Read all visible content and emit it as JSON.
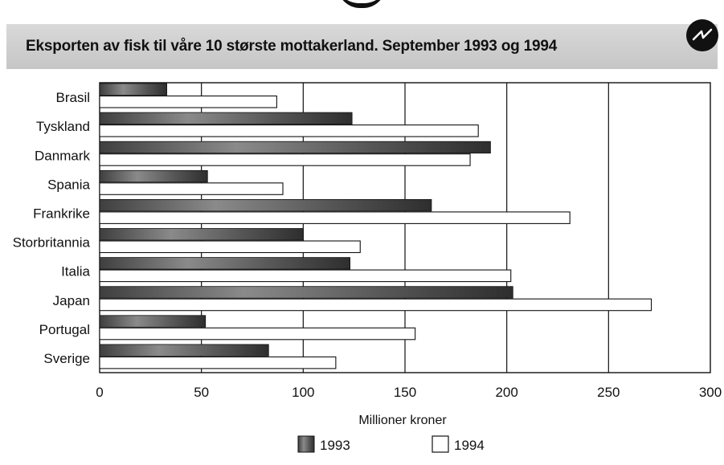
{
  "header": {
    "title": "Eksporten av fisk til våre 10 største mottakerland. September 1993 og 1994"
  },
  "colors": {
    "series_1993": "#6d6d6d",
    "series_1994": "#ffffff",
    "axis": "#111111",
    "title_band": "#d2d2d2"
  },
  "chart_data": {
    "type": "bar",
    "orientation": "horizontal",
    "title": "Eksporten av fisk til våre 10 største mottakerland. September 1993 og 1994",
    "xlabel": "Millioner kroner",
    "ylabel": "",
    "xlim": [
      0,
      300
    ],
    "xticks": [
      0,
      50,
      100,
      150,
      200,
      250,
      300
    ],
    "grid": "vertical",
    "legend_position": "bottom",
    "categories": [
      "Brasil",
      "Tyskland",
      "Danmark",
      "Spania",
      "Frankrike",
      "Storbritannia",
      "Italia",
      "Japan",
      "Portugal",
      "Sverige"
    ],
    "series": [
      {
        "name": "1993",
        "values": [
          33,
          124,
          192,
          53,
          163,
          100,
          123,
          203,
          52,
          83
        ]
      },
      {
        "name": "1994",
        "values": [
          87,
          186,
          182,
          90,
          231,
          128,
          202,
          271,
          155,
          116
        ]
      }
    ]
  }
}
